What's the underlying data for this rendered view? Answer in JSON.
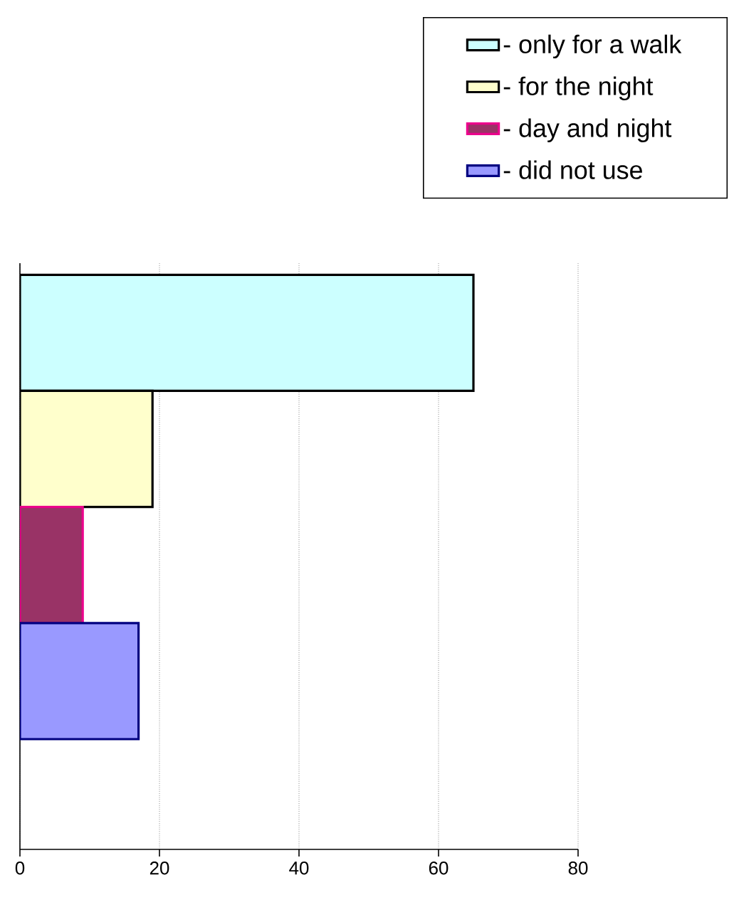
{
  "chart_data": {
    "type": "bar",
    "orientation": "horizontal",
    "categories": [
      null
    ],
    "series": [
      {
        "name": "- only for a walk",
        "color": "#ccffff",
        "values": [
          65
        ]
      },
      {
        "name": "- for the night",
        "color": "#ffffcc",
        "values": [
          19
        ]
      },
      {
        "name": "- day and night",
        "color": "#993366",
        "values": [
          9
        ]
      },
      {
        "name": "- did not use",
        "color": "#9999ff",
        "values": [
          17
        ]
      }
    ],
    "xlim": [
      0,
      80
    ],
    "xticks": [
      0,
      20,
      40,
      60,
      80
    ],
    "grid": "x",
    "legend": "top right"
  }
}
